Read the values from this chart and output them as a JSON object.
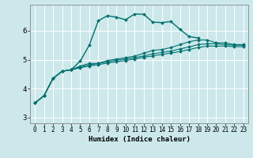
{
  "title": "",
  "xlabel": "Humidex (Indice chaleur)",
  "ylabel": "",
  "bg_color": "#cce8ea",
  "grid_color": "#ffffff",
  "line_color": "#007070",
  "xlim": [
    -0.5,
    23.5
  ],
  "ylim": [
    2.8,
    6.9
  ],
  "xticks": [
    0,
    1,
    2,
    3,
    4,
    5,
    6,
    7,
    8,
    9,
    10,
    11,
    12,
    13,
    14,
    15,
    16,
    17,
    18,
    19,
    20,
    21,
    22,
    23
  ],
  "yticks": [
    3,
    4,
    5,
    6
  ],
  "series": [
    {
      "x": [
        0,
        1,
        2,
        3,
        4,
        5,
        6,
        7,
        8,
        9,
        10,
        11,
        12,
        13,
        14,
        15,
        16,
        17,
        18
      ],
      "y": [
        3.5,
        3.75,
        4.35,
        4.6,
        4.65,
        4.95,
        5.5,
        6.35,
        6.52,
        6.47,
        6.38,
        6.58,
        6.57,
        6.3,
        6.28,
        6.32,
        6.05,
        5.8,
        5.75
      ],
      "style": "-",
      "marker": "D",
      "markersize": 2.0,
      "lw": 1.0
    },
    {
      "x": [
        0,
        1,
        2,
        3,
        4,
        5,
        6,
        7,
        8,
        9,
        10,
        11,
        12,
        13,
        14,
        15,
        16,
        17,
        18,
        19,
        20,
        21,
        22,
        23
      ],
      "y": [
        3.5,
        3.75,
        4.35,
        4.6,
        4.65,
        4.72,
        4.78,
        4.83,
        4.88,
        4.93,
        4.97,
        5.02,
        5.08,
        5.13,
        5.18,
        5.23,
        5.28,
        5.35,
        5.42,
        5.47,
        5.47,
        5.47,
        5.45,
        5.45
      ],
      "style": "-",
      "marker": "D",
      "markersize": 2.0,
      "lw": 0.8
    },
    {
      "x": [
        0,
        1,
        2,
        3,
        4,
        5,
        6,
        7,
        8,
        9,
        10,
        11,
        12,
        13,
        14,
        15,
        16,
        17,
        18,
        19,
        20,
        21,
        22,
        23
      ],
      "y": [
        3.5,
        3.75,
        4.35,
        4.6,
        4.65,
        4.75,
        4.82,
        4.87,
        4.93,
        4.98,
        5.02,
        5.07,
        5.13,
        5.2,
        5.25,
        5.3,
        5.37,
        5.44,
        5.52,
        5.55,
        5.55,
        5.52,
        5.5,
        5.5
      ],
      "style": "-",
      "marker": "D",
      "markersize": 2.0,
      "lw": 0.8
    },
    {
      "x": [
        0,
        1,
        2,
        3,
        4,
        5,
        6,
        7,
        8,
        9,
        10,
        11,
        12,
        13,
        14,
        15,
        16,
        17,
        18,
        19,
        20,
        21,
        22,
        23
      ],
      "y": [
        3.5,
        3.75,
        4.35,
        4.6,
        4.65,
        4.78,
        4.87,
        4.87,
        4.97,
        5.02,
        5.07,
        5.12,
        5.22,
        5.32,
        5.35,
        5.42,
        5.52,
        5.62,
        5.68,
        5.68,
        5.58,
        5.58,
        5.52,
        5.52
      ],
      "style": "-",
      "marker": "D",
      "markersize": 2.0,
      "lw": 0.8
    }
  ]
}
